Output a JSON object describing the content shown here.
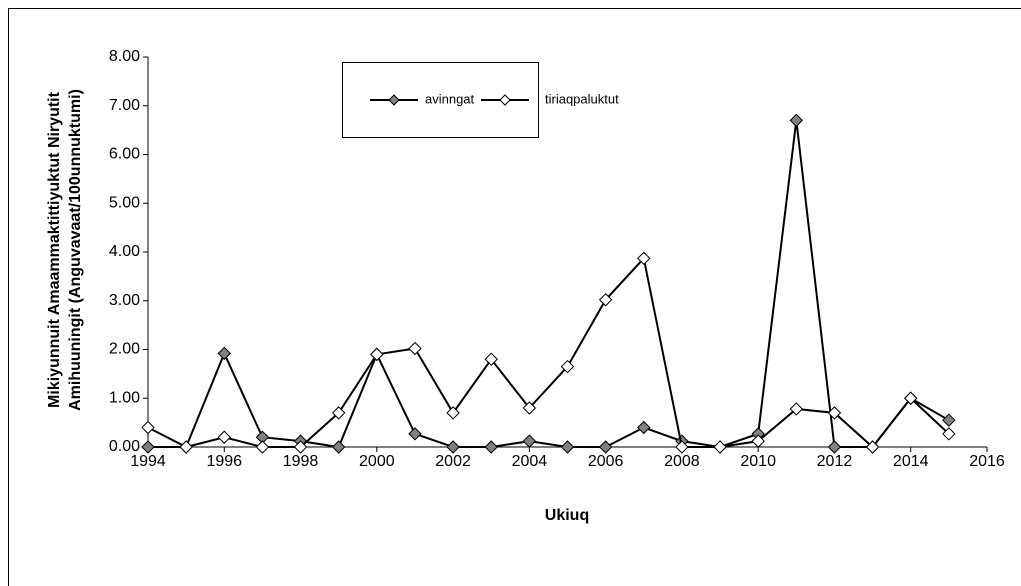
{
  "chart_data": {
    "type": "line",
    "xlabel": "Ukiuq",
    "ylabel": [
      "Mikiyunnuit Amaammaktittiyuktut Niryutit",
      "Amihuuningit  (Anguvavaat/100unnuktumi)"
    ],
    "x": [
      1994,
      1995,
      1996,
      1997,
      1998,
      1999,
      2000,
      2001,
      2002,
      2003,
      2004,
      2005,
      2006,
      2007,
      2008,
      2009,
      2010,
      2011,
      2012,
      2013,
      2014,
      2015
    ],
    "series": [
      {
        "name": "avinngat",
        "color": "#808080",
        "values": [
          0,
          0,
          1.92,
          0.2,
          0.12,
          0,
          1.9,
          0.27,
          0,
          0,
          0.12,
          0,
          0,
          0.4,
          0.12,
          0,
          0.27,
          6.7,
          0,
          0,
          1.0,
          0.55
        ]
      },
      {
        "name": "tiriaqpaluktut",
        "color": "#ffffff",
        "values": [
          0.4,
          0,
          0.2,
          0,
          0,
          0.7,
          1.9,
          2.02,
          0.7,
          1.8,
          0.8,
          1.65,
          3.02,
          3.87,
          0,
          0,
          0.12,
          0.78,
          0.7,
          0,
          1.0,
          0.27
        ]
      }
    ],
    "xlim": [
      1994,
      2016
    ],
    "xticks": [
      1994,
      1996,
      1998,
      2000,
      2002,
      2004,
      2006,
      2008,
      2010,
      2012,
      2014,
      2016
    ],
    "ylim": [
      0,
      8
    ],
    "yticks": [
      {
        "value": 0,
        "label": "0.00"
      },
      {
        "value": 1,
        "label": "1.00"
      },
      {
        "value": 2,
        "label": "2.00"
      },
      {
        "value": 3,
        "label": "3.00"
      },
      {
        "value": 4,
        "label": "4.00"
      },
      {
        "value": 5,
        "label": "5.00"
      },
      {
        "value": 6,
        "label": "6.00"
      },
      {
        "value": 7,
        "label": "7.00"
      },
      {
        "value": 8,
        "label": "8.00"
      }
    ],
    "grid": false,
    "legend": "top"
  }
}
